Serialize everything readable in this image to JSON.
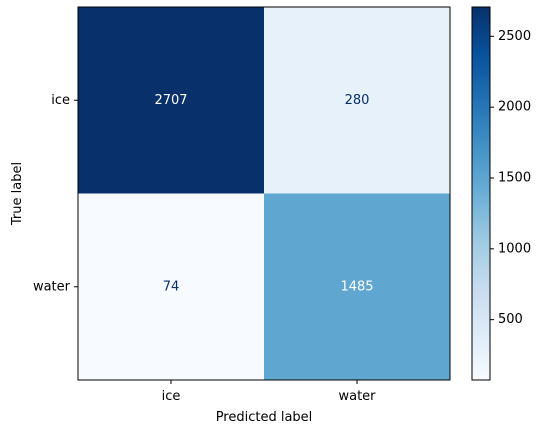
{
  "chart_data": {
    "type": "heatmap",
    "title": "",
    "xlabel": "Predicted label",
    "ylabel": "True label",
    "x_categories": [
      "ice",
      "water"
    ],
    "y_categories": [
      "ice",
      "water"
    ],
    "matrix": [
      [
        2707,
        280
      ],
      [
        74,
        1485
      ]
    ],
    "colormap": "Blues",
    "color_range": [
      74,
      2707
    ],
    "colorbar_ticks": [
      500,
      1000,
      1500,
      2000,
      2500
    ],
    "grid": false,
    "legend": "colorbar-right"
  }
}
